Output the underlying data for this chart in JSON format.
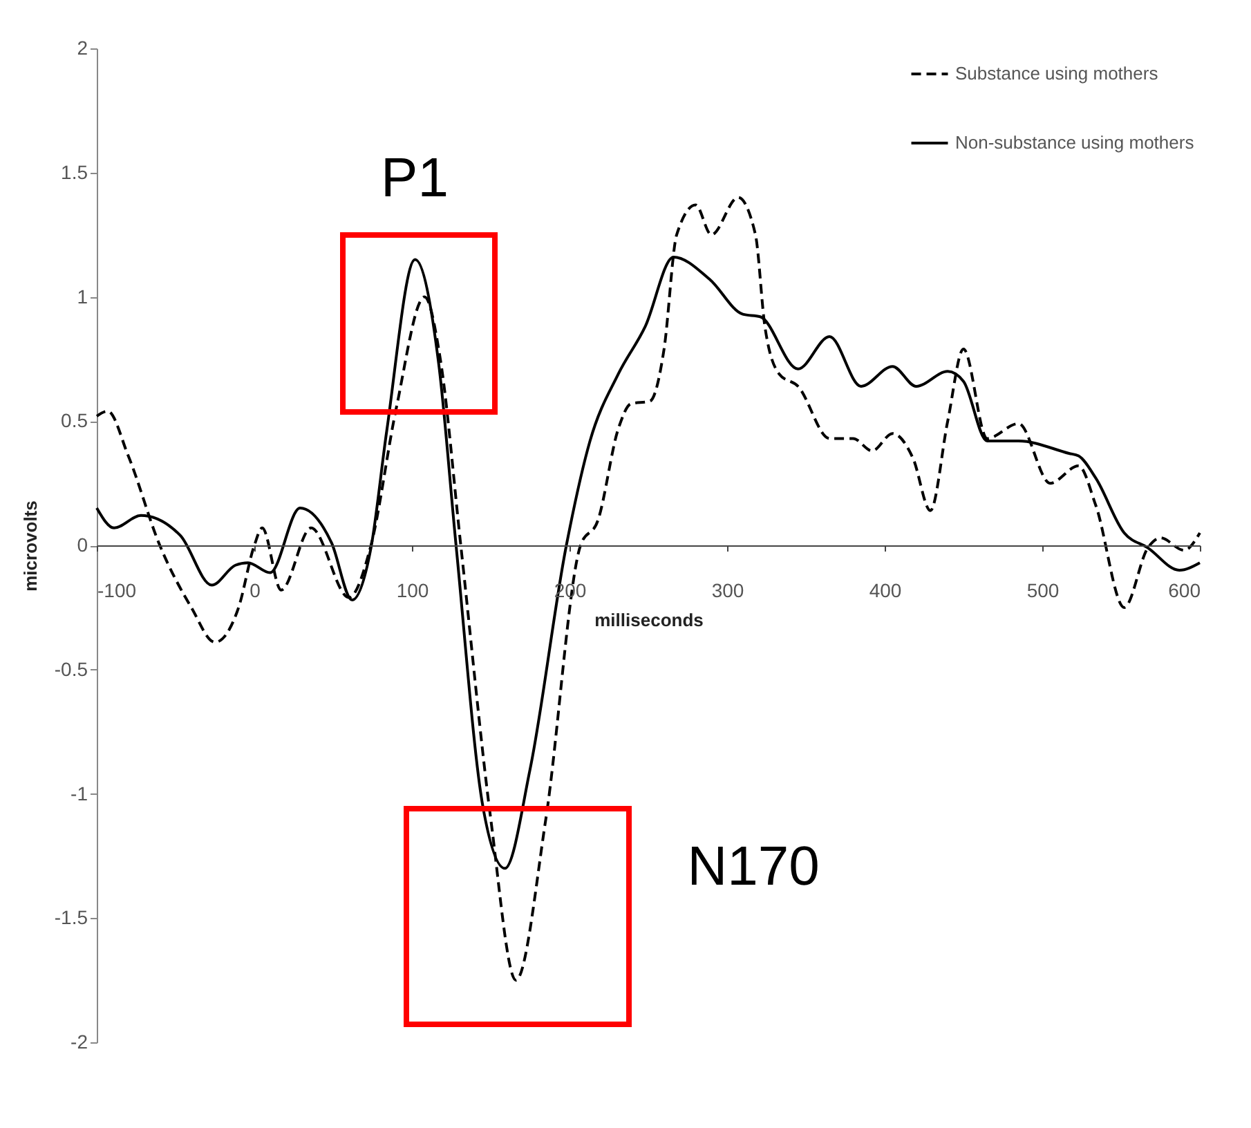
{
  "chart_data": {
    "type": "line",
    "xlabel": "milliseconds",
    "ylabel": "microvolts",
    "xlim": [
      -100,
      600
    ],
    "xticks": [
      -100,
      0,
      100,
      200,
      300,
      400,
      500,
      600
    ],
    "ylim": [
      -2,
      2
    ],
    "yticks": [
      -2,
      -1.5,
      -1,
      -0.5,
      0,
      0.5,
      1,
      1.5,
      2
    ],
    "grid": false,
    "legend": "top right",
    "marker": "none",
    "series": [
      {
        "name": "Substance using mothers",
        "color": "#000000",
        "line_style": "dashed",
        "x": [
          -100,
          -93,
          -80,
          -60,
          -40,
          -25,
          -10,
          0,
          5,
          17,
          36,
          60,
          74,
          90,
          108,
          118,
          131,
          150,
          166,
          185,
          207,
          218,
          231,
          239,
          251,
          260,
          268,
          280,
          290,
          307,
          318,
          324,
          333,
          345,
          365,
          380,
          392,
          405,
          418,
          429,
          440,
          450,
          465,
          485,
          505,
          523,
          534,
          552,
          567,
          575,
          590,
          600
        ],
        "values": [
          0.52,
          0.54,
          0.36,
          0,
          -0.25,
          -0.39,
          -0.25,
          0,
          0.07,
          -0.18,
          0.07,
          -0.21,
          0,
          0.55,
          1.0,
          0.75,
          0,
          -1.1,
          -1.75,
          -1.1,
          0,
          0.1,
          0.47,
          0.57,
          0.58,
          0.79,
          1.25,
          1.37,
          1.25,
          1.4,
          1.25,
          0.88,
          0.69,
          0.64,
          0.43,
          0.43,
          0.38,
          0.45,
          0.35,
          0.14,
          0.5,
          0.79,
          0.43,
          0.49,
          0.25,
          0.32,
          0.16,
          -0.25,
          -0.01,
          0.03,
          -0.02,
          0.05
        ]
      },
      {
        "name": "Non-substance using mothers",
        "color": "#000000",
        "line_style": "solid",
        "x": [
          -100,
          -89,
          -72,
          -47,
          -27,
          -12,
          -4,
          10,
          29,
          49,
          62,
          74,
          84,
          102,
          117,
          128,
          145,
          159,
          175,
          198,
          213,
          231,
          248,
          266,
          289,
          310,
          321,
          345,
          365,
          385,
          405,
          420,
          440,
          450,
          465,
          485,
          517,
          523,
          534,
          552,
          567,
          587,
          600
        ],
        "values": [
          0.15,
          0.07,
          0.12,
          0.04,
          -0.16,
          -0.08,
          -0.07,
          -0.11,
          0.15,
          0.01,
          -0.22,
          -0.01,
          0.46,
          1.15,
          0.73,
          0,
          -1.05,
          -1.3,
          -0.9,
          0,
          0.42,
          0.69,
          0.88,
          1.16,
          1.07,
          0.93,
          0.92,
          0.71,
          0.84,
          0.64,
          0.72,
          0.64,
          0.7,
          0.66,
          0.42,
          0.42,
          0.37,
          0.36,
          0.27,
          0.05,
          -0.01,
          -0.1,
          -0.07
        ]
      }
    ],
    "annotations": [
      "P1",
      "N170"
    ]
  }
}
